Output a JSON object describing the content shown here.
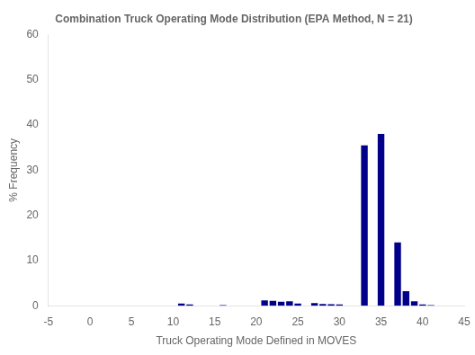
{
  "chart_data": {
    "type": "bar",
    "title": "Combination Truck Operating Mode Distribution (EPA Method, N = 21)",
    "xlabel": "Truck Operating Mode Defined in MOVES",
    "ylabel": "% Frequency",
    "x": [
      11,
      12,
      16,
      21,
      22,
      23,
      24,
      25,
      27,
      28,
      29,
      30,
      33,
      35,
      37,
      38,
      39,
      40,
      41
    ],
    "values": [
      0.5,
      0.3,
      0.15,
      1.2,
      1.1,
      0.9,
      1.0,
      0.5,
      0.6,
      0.4,
      0.35,
      0.3,
      35.5,
      38.0,
      14.0,
      3.2,
      1.0,
      0.3,
      0.15
    ],
    "color": "#00008B",
    "xlim": [
      -5,
      45
    ],
    "ylim": [
      0,
      60
    ],
    "xticks": [
      -5,
      0,
      5,
      10,
      15,
      20,
      25,
      30,
      35,
      40,
      45
    ],
    "yticks": [
      0,
      10,
      20,
      30,
      40,
      50,
      60
    ],
    "grid": false
  }
}
